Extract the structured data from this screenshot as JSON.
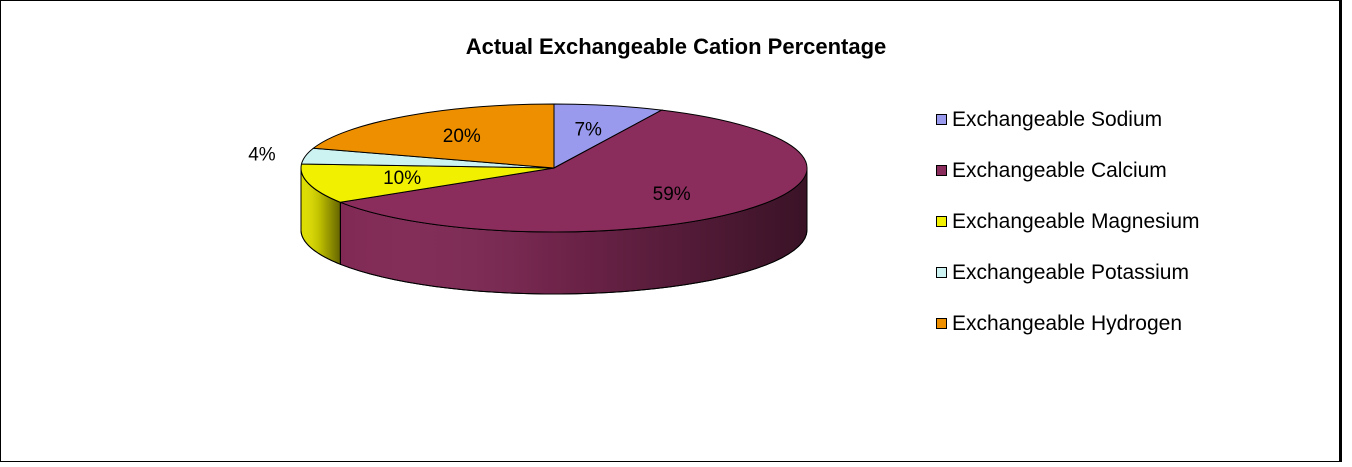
{
  "chart_data": {
    "type": "pie",
    "title": "Actual Exchangeable Cation Percentage",
    "categories": [
      "Exchangeable Sodium",
      "Exchangeable Calcium",
      "Exchangeable Magnesium",
      "Exchangeable Potassium",
      "Exchangeable Hydrogen"
    ],
    "values": [
      7,
      59,
      10,
      4,
      20
    ],
    "labels": [
      "7%",
      "59%",
      "10%",
      "4%",
      "20%"
    ],
    "colors": [
      "#9999ee",
      "#8b2d5c",
      "#f0f000",
      "#ccf2f2",
      "#ee8f00"
    ],
    "legend_position": "right",
    "three_d": true
  }
}
